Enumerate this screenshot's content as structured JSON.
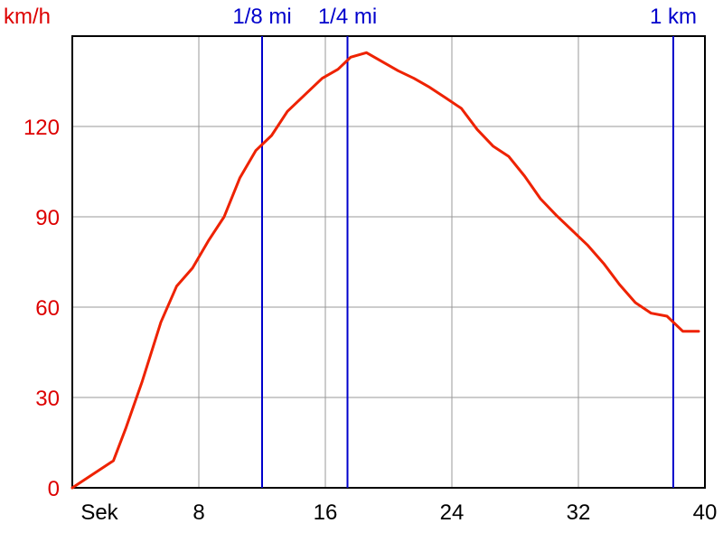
{
  "chart_data": {
    "type": "line",
    "title": "",
    "xlabel": "",
    "ylabel": "km/h",
    "xlim": [
      0,
      40
    ],
    "ylim": [
      0,
      150
    ],
    "x_ticks": [
      0,
      8,
      16,
      24,
      32,
      40
    ],
    "x_tick_labels": [
      "Sek",
      "8",
      "16",
      "24",
      "32",
      "40"
    ],
    "y_ticks": [
      0,
      30,
      60,
      90,
      120
    ],
    "y_tick_labels": [
      "0",
      "30",
      "60",
      "90",
      "120"
    ],
    "grid": true,
    "colors": {
      "speed": "#ee2200",
      "markers": "#0000cc",
      "axis": "#000000",
      "grid": "#999999"
    },
    "markers": [
      {
        "label": "1/8 mi",
        "x": 12.0
      },
      {
        "label": "1/4 mi",
        "x": 17.4
      },
      {
        "label": "1 km",
        "x": 38.0
      }
    ],
    "series": [
      {
        "name": "",
        "x": [
          0,
          2.6,
          3.4,
          4.4,
          5.6,
          6.6,
          7.6,
          8.6,
          9.6,
          10.6,
          11.6,
          12.6,
          13.6,
          14.8,
          15.8,
          16.8,
          17.6,
          18.6,
          19.6,
          20.6,
          21.6,
          22.6,
          23.6,
          24.6,
          25.6,
          26.6,
          27.6,
          28.6,
          29.6,
          30.6,
          31.6,
          32.6,
          33.6,
          34.6,
          35.6,
          36.6,
          37.6,
          38.6,
          39.6
        ],
        "y": [
          0,
          9,
          20,
          35,
          55,
          67,
          73,
          82,
          90,
          103,
          112,
          117,
          125,
          131,
          136,
          139,
          143,
          144.5,
          141.5,
          138.5,
          136,
          133,
          129.5,
          126,
          119,
          113.5,
          110,
          103.5,
          96,
          90.5,
          85.5,
          80.5,
          74.5,
          67.5,
          61.5,
          58,
          57,
          52,
          52
        ]
      }
    ]
  }
}
